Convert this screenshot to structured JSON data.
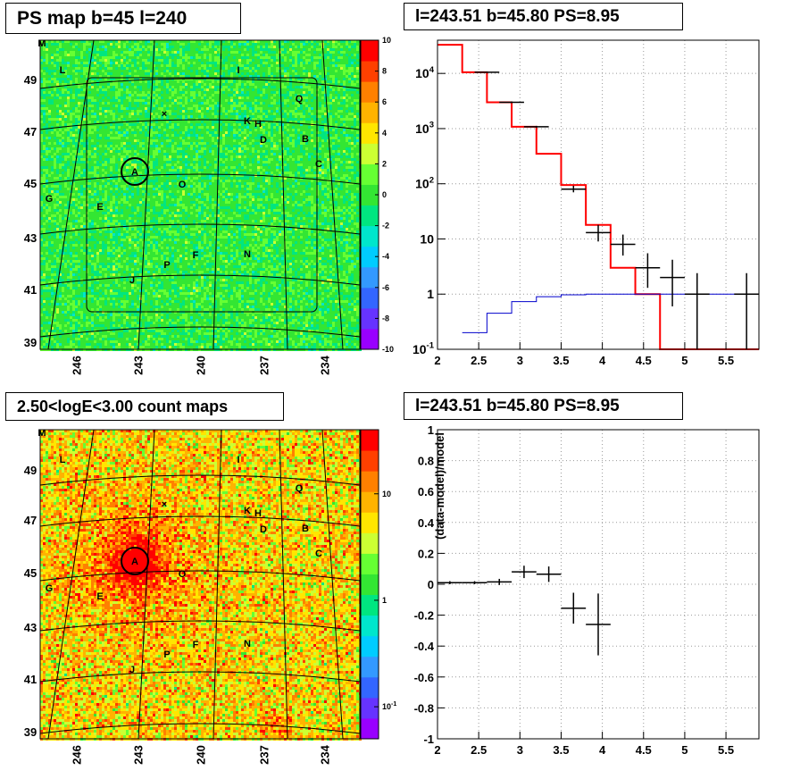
{
  "panels": {
    "top_left": {
      "title": "PS map b=45 l=240"
    },
    "top_right": {
      "title": "l=243.51 b=45.80 PS=8.95"
    },
    "bottom_left": {
      "title": "2.50<logE<3.00 count maps"
    },
    "bottom_right": {
      "title": "l=243.51 b=45.80 PS=8.95"
    }
  },
  "colors": {
    "green_map": "#22e050",
    "yellow_map": "#d8e030",
    "model_red": "#ff0000",
    "model_blue": "#0000cc",
    "data_black": "#000000"
  },
  "chart_data": [
    {
      "id": "ps-map",
      "type": "heatmap",
      "title": "PS map b=45 l=240",
      "x_ticks": [
        "246",
        "243",
        "240",
        "237",
        "234"
      ],
      "y_ticks": [
        "39",
        "41",
        "43",
        "45",
        "47",
        "49"
      ],
      "colorbar": {
        "range": [
          -10,
          10
        ],
        "ticks": [
          "10",
          "8",
          "6",
          "4",
          "2",
          "0",
          "-2",
          "-4",
          "-6",
          "-8",
          "-10"
        ]
      },
      "sources": [
        "M",
        "L",
        "I",
        "Q",
        "K",
        "H",
        "D",
        "B",
        "C",
        "A",
        "O",
        "G",
        "E",
        "P",
        "F",
        "N",
        "J"
      ],
      "mean_value": 0
    },
    {
      "id": "spectrum",
      "type": "line",
      "title": "l=243.51 b=45.80 PS=8.95",
      "xlim": [
        2,
        5.9
      ],
      "ylim": [
        0.1,
        40000
      ],
      "y_scale": "log",
      "x_ticks": [
        "2",
        "2.5",
        "3",
        "3.5",
        "4",
        "4.5",
        "5",
        "5.5"
      ],
      "y_ticks": [
        "10^-1",
        "1",
        "10",
        "10^2",
        "10^3",
        "10^4"
      ],
      "grid": true,
      "series": [
        {
          "style": "step-red",
          "edges": [
            2.0,
            2.3,
            2.6,
            2.9,
            3.2,
            3.5,
            3.8,
            4.1,
            4.4,
            4.7,
            5.9
          ],
          "values": [
            33000,
            10500,
            3000,
            1080,
            350,
            95,
            18,
            3,
            1.0,
            0.1
          ]
        },
        {
          "style": "step-blue",
          "edges": [
            2.3,
            2.6,
            2.9,
            3.2,
            3.5,
            3.8,
            4.1,
            4.4,
            4.7,
            5.0,
            5.3,
            5.6,
            5.9
          ],
          "values": [
            0.2,
            0.45,
            0.73,
            0.9,
            0.97,
            1.0,
            1.0,
            1.0,
            1.0,
            1.0,
            1.0,
            1.0
          ]
        },
        {
          "style": "points-black",
          "x": [
            2.6,
            2.9,
            3.2,
            3.65,
            3.95,
            4.25,
            4.55,
            4.85,
            5.15,
            5.75
          ],
          "y": [
            10500,
            3000,
            1080,
            80,
            13,
            8,
            3,
            2,
            1,
            1
          ],
          "xerr": [
            0.15,
            0.15,
            0.15,
            0.15,
            0.15,
            0.15,
            0.15,
            0.15,
            0.15,
            0.15
          ],
          "ylo": [
            10300,
            2900,
            1040,
            70,
            9,
            5,
            1.3,
            0.6,
            0.1,
            0.1
          ],
          "yhi": [
            10700,
            3100,
            1120,
            92,
            18,
            12,
            5.5,
            4.2,
            2.4,
            2.4
          ]
        }
      ]
    },
    {
      "id": "count-map",
      "type": "heatmap",
      "title": "2.50<logE<3.00 count maps",
      "x_ticks": [
        "246",
        "243",
        "240",
        "237",
        "234"
      ],
      "y_ticks": [
        "39",
        "41",
        "43",
        "45",
        "47",
        "49"
      ],
      "colorbar": {
        "scale": "log",
        "range": [
          0.05,
          40
        ],
        "ticks": [
          "10",
          "1",
          "10^-1"
        ]
      },
      "sources": [
        "M",
        "L",
        "I",
        "Q",
        "K",
        "H",
        "D",
        "B",
        "C",
        "A",
        "O",
        "G",
        "E",
        "P",
        "F",
        "N",
        "J"
      ]
    },
    {
      "id": "residuals",
      "type": "scatter",
      "title": "l=243.51 b=45.80 PS=8.95",
      "ylabel": "(data-model)/model",
      "xlim": [
        2,
        5.9
      ],
      "ylim": [
        -1,
        1
      ],
      "x_ticks": [
        "2",
        "2.5",
        "3",
        "3.5",
        "4",
        "4.5",
        "5",
        "5.5"
      ],
      "y_ticks": [
        "1",
        "0.8",
        "0.6",
        "0.4",
        "0.2",
        "0",
        "-0.2",
        "-0.4",
        "-0.6",
        "-0.8",
        "-1"
      ],
      "grid": true,
      "series": [
        {
          "x": [
            2.15,
            2.45,
            2.75,
            3.05,
            3.35,
            3.65,
            3.95
          ],
          "y": [
            0.01,
            0.01,
            0.015,
            0.08,
            0.065,
            -0.155,
            -0.26
          ],
          "xerr": [
            0.15,
            0.15,
            0.15,
            0.15,
            0.15,
            0.15,
            0.15
          ],
          "yerr": [
            0.01,
            0.01,
            0.02,
            0.04,
            0.05,
            0.1,
            0.2
          ]
        }
      ]
    }
  ]
}
